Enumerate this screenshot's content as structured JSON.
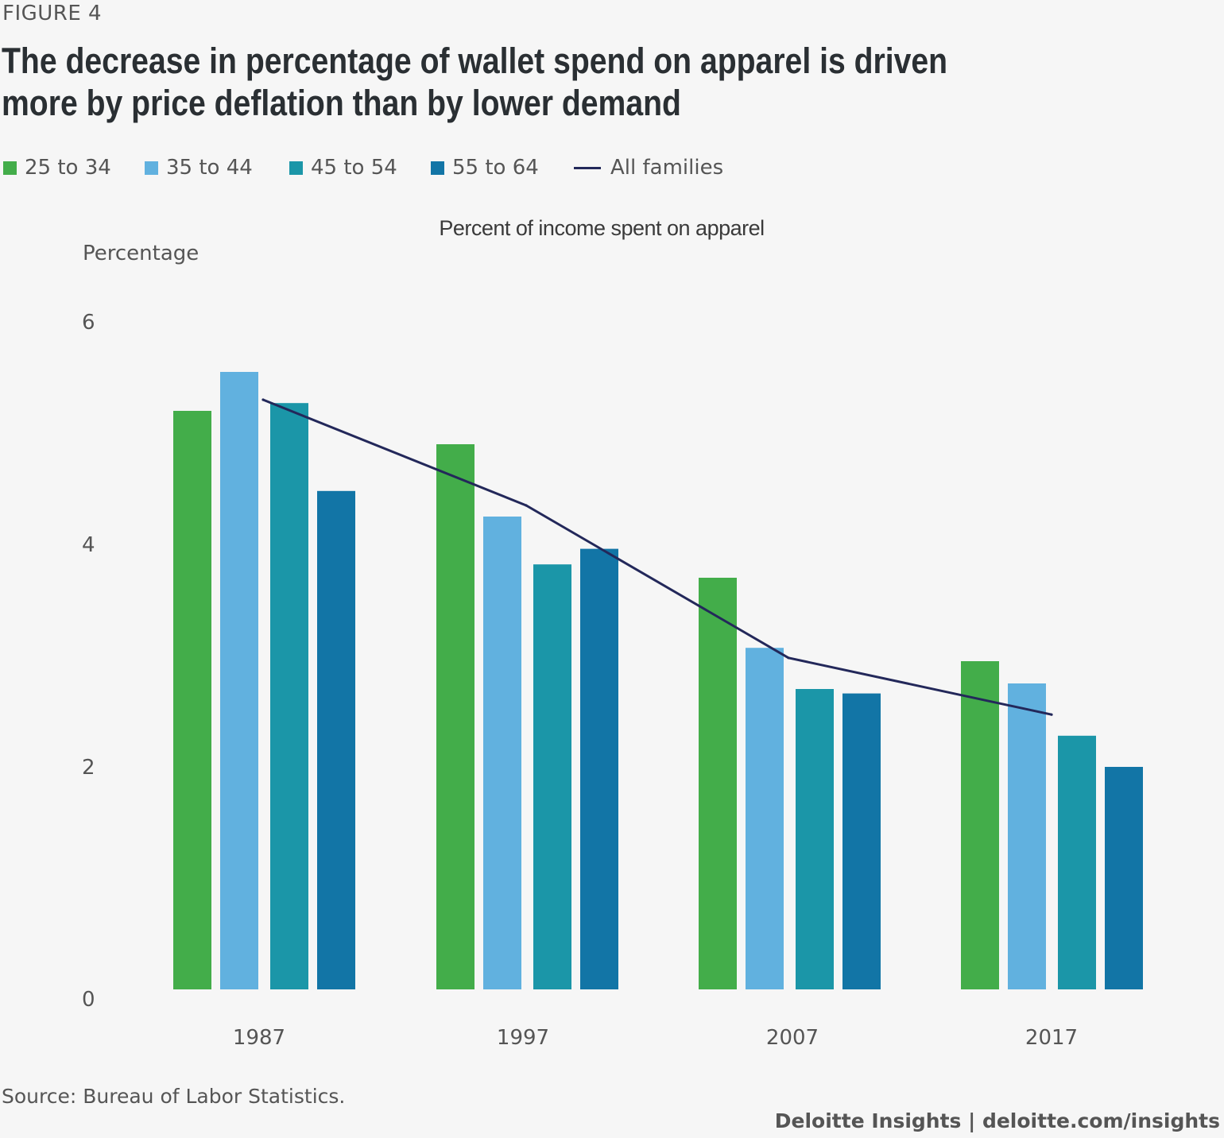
{
  "figure_label": "FIGURE 4",
  "title": "The decrease in percentage of wallet spend on apparel is driven more by price deflation than by lower demand",
  "legend": [
    {
      "label": "25 to 34",
      "color": "#43ad4a",
      "kind": "bar"
    },
    {
      "label": "35 to 44",
      "color": "#61b1df",
      "kind": "bar"
    },
    {
      "label": "45 to 54",
      "color": "#1b96a8",
      "kind": "bar"
    },
    {
      "label": "55 to 64",
      "color": "#1275a6",
      "kind": "bar"
    },
    {
      "label": "All families",
      "color": "#23285a",
      "kind": "line"
    }
  ],
  "source": "Source: Bureau of Labor Statistics.",
  "footer": "Deloitte Insights | deloitte.com/insights",
  "chart_data": {
    "type": "bar",
    "title": "Percent of income spent on apparel",
    "xlabel": "",
    "ylabel": "Percentage",
    "categories": [
      "1987",
      "1997",
      "2007",
      "2017"
    ],
    "series": [
      {
        "name": "25 to 34",
        "color": "#43ad4a",
        "values": [
          5.2,
          4.9,
          3.7,
          2.95
        ]
      },
      {
        "name": "35 to 44",
        "color": "#61b1df",
        "values": [
          5.55,
          4.25,
          3.07,
          2.75
        ]
      },
      {
        "name": "45 to 54",
        "color": "#1b96a8",
        "values": [
          5.27,
          3.82,
          2.7,
          2.28
        ]
      },
      {
        "name": "55 to 64",
        "color": "#1275a6",
        "values": [
          4.48,
          3.96,
          2.66,
          2.0
        ]
      }
    ],
    "line_series": {
      "name": "All families",
      "type": "line",
      "color": "#23285a",
      "values": [
        5.3,
        4.35,
        2.98,
        2.47
      ]
    },
    "ylim": [
      0,
      6
    ],
    "yticks": [
      0,
      2,
      4,
      6
    ],
    "grid": false,
    "legend_position": "top-left"
  }
}
